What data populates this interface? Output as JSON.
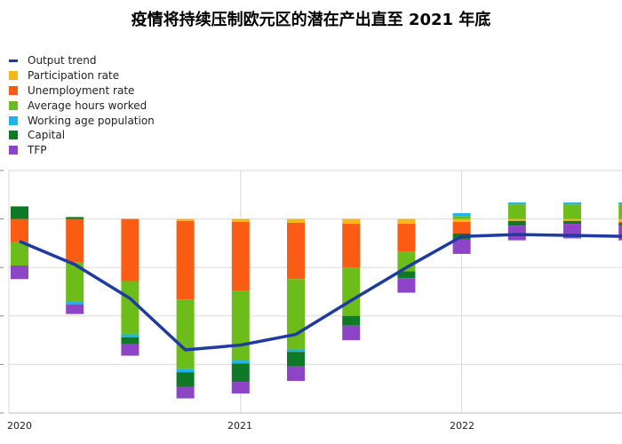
{
  "title": "疫情将持续压制欧元区的潜在产出直至 2021 年底",
  "chart_data": {
    "type": "bar",
    "title": "疫情将持续压制欧元区的潜在产出直至 2021 年底",
    "xlabel": "",
    "ylabel": "",
    "ylim": [
      -2.0,
      0.5
    ],
    "x_ticks": [
      "2020",
      "2021",
      "2022"
    ],
    "grid": true,
    "legend_position": "top-left",
    "categories": [
      "2020Q1",
      "2020Q2",
      "2020Q3",
      "2020Q4",
      "2021Q1",
      "2021Q2",
      "2021Q3",
      "2021Q4",
      "2022Q1",
      "2022Q2",
      "2022Q3",
      "2022Q4"
    ],
    "series": [
      {
        "name": "Output trend",
        "kind": "line",
        "color": "#1f3aa0",
        "values": [
          -0.23,
          -0.47,
          -0.82,
          -1.35,
          -1.3,
          -1.19,
          -0.84,
          -0.5,
          -0.18,
          -0.16,
          -0.17,
          -0.18
        ]
      },
      {
        "name": "Participation rate",
        "kind": "bar",
        "color": "#f5b817",
        "values": [
          0.0,
          0.0,
          0.0,
          -0.02,
          -0.03,
          -0.04,
          -0.05,
          -0.05,
          -0.03,
          -0.02,
          -0.02,
          -0.03
        ]
      },
      {
        "name": "Unemployment rate",
        "kind": "bar",
        "color": "#fa5c13",
        "values": [
          -0.24,
          -0.45,
          -0.64,
          -0.81,
          -0.71,
          -0.58,
          -0.45,
          -0.29,
          -0.12,
          0.0,
          0.0,
          -0.01
        ]
      },
      {
        "name": "Average hours worked",
        "kind": "bar",
        "color": "#6cbd1a",
        "values": [
          -0.24,
          -0.4,
          -0.55,
          -0.72,
          -0.72,
          -0.72,
          -0.5,
          -0.2,
          0.03,
          0.15,
          0.15,
          0.15
        ]
      },
      {
        "name": "Working age population",
        "kind": "bar",
        "color": "#1fb3e6",
        "values": [
          0.0,
          -0.03,
          -0.03,
          -0.03,
          -0.03,
          -0.03,
          0.0,
          0.0,
          0.03,
          0.02,
          0.02,
          0.02
        ]
      },
      {
        "name": "Capital",
        "kind": "bar",
        "color": "#0f7a25",
        "values": [
          0.13,
          0.02,
          -0.07,
          -0.15,
          -0.19,
          -0.15,
          -0.1,
          -0.07,
          -0.06,
          -0.05,
          -0.03,
          -0.03
        ]
      },
      {
        "name": "TFP",
        "kind": "bar",
        "color": "#8e44c7",
        "values": [
          -0.14,
          -0.1,
          -0.12,
          -0.12,
          -0.12,
          -0.15,
          -0.15,
          -0.15,
          -0.15,
          -0.15,
          -0.15,
          -0.15
        ]
      }
    ]
  }
}
